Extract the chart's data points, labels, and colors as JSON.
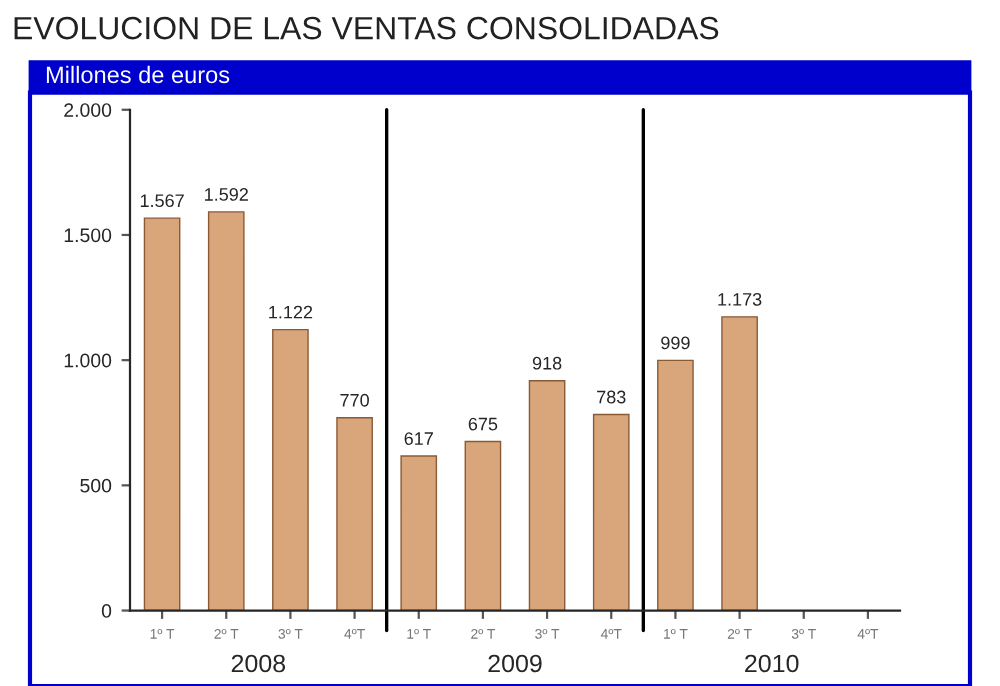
{
  "chart_data": {
    "type": "bar",
    "title": "EVOLUCION DE LAS VENTAS CONSOLIDADAS",
    "subtitle": "Millones de euros",
    "categories": [
      "1º T",
      "2º T",
      "3º T",
      "4ºT",
      "1º T",
      "2º T",
      "3º T",
      "4ºT",
      "1º T",
      "2º T",
      "3º T",
      "4ºT"
    ],
    "values": [
      1567,
      1592,
      1122,
      770,
      617,
      675,
      918,
      783,
      999,
      1173,
      null,
      null
    ],
    "value_labels": [
      "1.567",
      "1.592",
      "1.122",
      "770",
      "617",
      "675",
      "918",
      "783",
      "999",
      "1.173",
      null,
      null
    ],
    "color": "#d9a57a",
    "ylim": [
      0,
      2000
    ],
    "yticks": [
      {
        "value": 0,
        "label": "0"
      },
      {
        "value": 500,
        "label": "500"
      },
      {
        "value": 1000,
        "label": "1.000"
      },
      {
        "value": 1500,
        "label": "1.500"
      },
      {
        "value": 2000,
        "label": "2.000"
      }
    ],
    "annotations": [
      "2008",
      "2009",
      "2010"
    ],
    "grid": false,
    "legend": false
  }
}
